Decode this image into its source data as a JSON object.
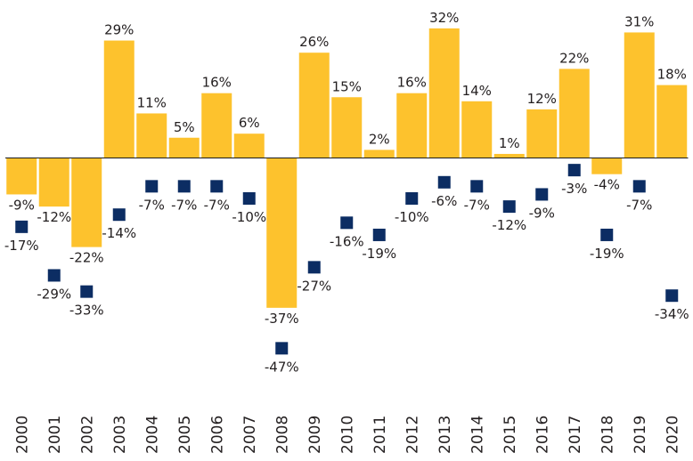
{
  "chart_data": {
    "type": "bar",
    "categories": [
      "2000",
      "2001",
      "2002",
      "2003",
      "2004",
      "2005",
      "2006",
      "2007",
      "2008",
      "2009",
      "2010",
      "2011",
      "2012",
      "2013",
      "2014",
      "2015",
      "2016",
      "2017",
      "2018",
      "2019",
      "2020"
    ],
    "series": [
      {
        "kind": "bar",
        "color": "#fdc22d",
        "values": [
          -9,
          -12,
          -22,
          29,
          11,
          5,
          16,
          6,
          -37,
          26,
          15,
          2,
          16,
          32,
          14,
          1,
          12,
          22,
          -4,
          31,
          18
        ],
        "labels": [
          "-9%",
          "-12%",
          "-22%",
          "29%",
          "11%",
          "5%",
          "16%",
          "6%",
          "-37%",
          "26%",
          "15%",
          "2%",
          "16%",
          "32%",
          "14%",
          "1%",
          "12%",
          "22%",
          "-4%",
          "31%",
          "18%"
        ]
      },
      {
        "kind": "marker",
        "color": "#0c2d63",
        "values": [
          -17,
          -29,
          -33,
          -14,
          -7,
          -7,
          -7,
          -10,
          -47,
          -27,
          -16,
          -19,
          -10,
          -6,
          -7,
          -12,
          -9,
          -3,
          -19,
          -7,
          -34
        ],
        "labels": [
          "-17%",
          "-29%",
          "-33%",
          "-14%",
          "-7%",
          "-7%",
          "-7%",
          "-10%",
          "-47%",
          "-27%",
          "-16%",
          "-19%",
          "-10%",
          "-6%",
          "-7%",
          "-12%",
          "-9%",
          "-3%",
          "-19%",
          "-7%",
          "-34%"
        ]
      }
    ],
    "title": "",
    "xlabel": "",
    "ylabel": "",
    "ylim": [
      -50,
      35
    ],
    "grid": false,
    "legend": "none"
  }
}
